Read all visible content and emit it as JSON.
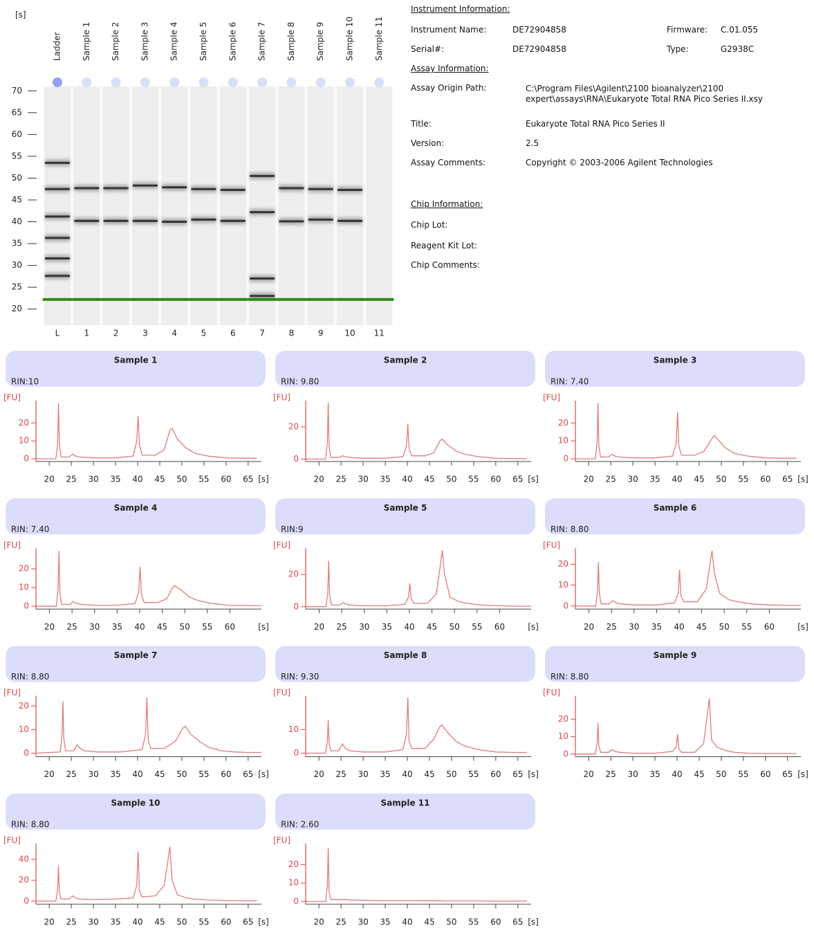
{
  "info": {
    "sections": [
      {
        "heading": "Instrument Information:",
        "rows": [
          [
            "Instrument Name:",
            "DE72904858",
            "Firmware:",
            "C.01.055"
          ],
          [
            "Serial#:",
            "DE72904858",
            "Type:",
            "G2938C"
          ]
        ]
      },
      {
        "heading": "Assay Information:",
        "rows": [
          [
            "Assay Origin Path:",
            "C:\\Program Files\\Agilent\\2100 bioanalyzer\\2100 expert\\assays\\RNA\\Eukaryote Total RNA Pico Series II.xsy"
          ],
          [
            "Title:",
            "Eukaryote Total RNA Pico Series II"
          ],
          [
            "Version:",
            "2.5"
          ],
          [
            "Assay Comments:",
            "Copyright © 2003-2006 Agilent Technologies"
          ]
        ]
      },
      {
        "heading": "Chip Information:",
        "rows": [
          [
            "Chip Lot:"
          ],
          [
            "Reagent Kit Lot:"
          ],
          [
            "Chip Comments:"
          ]
        ]
      }
    ]
  },
  "chart_data": [
    {
      "type": "gel",
      "y_label": "[s]",
      "ylim": [
        16.3,
        71
      ],
      "yticks": [
        70,
        65,
        60,
        55,
        50,
        45,
        40,
        35,
        30,
        25,
        20
      ],
      "marker": 22.2,
      "marker_color": "#2a8a14",
      "lanes": [
        {
          "name": "Ladder",
          "label": "L",
          "bands": [
            53.5,
            47.5,
            41.2,
            36.3,
            31.6,
            27.6
          ]
        },
        {
          "name": "Sample 1",
          "label": "1",
          "bands": [
            47.7,
            40.2
          ]
        },
        {
          "name": "Sample 2",
          "label": "2",
          "bands": [
            47.7,
            40.2
          ]
        },
        {
          "name": "Sample 3",
          "label": "3",
          "bands": [
            48.3,
            40.2
          ]
        },
        {
          "name": "Sample 4",
          "label": "4",
          "bands": [
            47.9,
            40.0
          ]
        },
        {
          "name": "Sample 5",
          "label": "5",
          "bands": [
            47.5,
            40.5
          ]
        },
        {
          "name": "Sample 6",
          "label": "6",
          "bands": [
            47.3,
            40.2
          ]
        },
        {
          "name": "Sample 7",
          "label": "7",
          "bands": [
            50.5,
            42.2,
            27.0,
            23.0
          ]
        },
        {
          "name": "Sample 8",
          "label": "8",
          "bands": [
            47.7,
            40.1
          ]
        },
        {
          "name": "Sample 9",
          "label": "9",
          "bands": [
            47.5,
            40.5
          ]
        },
        {
          "name": "Sample 10",
          "label": "10",
          "bands": [
            47.3,
            40.2
          ]
        },
        {
          "name": "Sample 11",
          "label": "11",
          "bands": []
        }
      ]
    },
    {
      "type": "line",
      "title": "Sample 1",
      "subtitle": "RIN:10",
      "y_label": "[FU]",
      "x_label": "[s]",
      "color": "#e07b7b",
      "axis_color": "#e04848",
      "x": [
        17,
        21.5,
        21.9,
        22.1,
        22.3,
        22.7,
        24.5,
        25.3,
        26,
        27,
        30,
        35,
        39,
        39.8,
        40.1,
        40.4,
        41,
        44,
        46,
        47.3,
        47.8,
        49,
        51,
        53,
        56,
        60,
        64,
        67
      ],
      "values": [
        0,
        0,
        8,
        31,
        8,
        1,
        1,
        2.5,
        1.5,
        1,
        0.5,
        0.5,
        1.5,
        10,
        24,
        8,
        2,
        2,
        5,
        16,
        17,
        11,
        6,
        3,
        1.5,
        0.5,
        0.3,
        0.3
      ],
      "xlim": [
        17,
        68
      ],
      "ylim": [
        -1.5,
        34
      ],
      "xticks": [
        20,
        25,
        30,
        35,
        40,
        45,
        50,
        55,
        60,
        65
      ],
      "yticks": [
        0,
        10,
        20
      ]
    },
    {
      "type": "line",
      "title": "Sample 2",
      "subtitle": "RIN: 9.80",
      "y_label": "[FU]",
      "x_label": "[s]",
      "color": "#e07b7b",
      "axis_color": "#e04848",
      "x": [
        17,
        21.5,
        21.9,
        22.1,
        22.3,
        22.7,
        24.5,
        25.3,
        26,
        27,
        30,
        35,
        39,
        39.8,
        40.1,
        40.4,
        41,
        44,
        46,
        47.3,
        47.8,
        49,
        51,
        53,
        56,
        60,
        64,
        67
      ],
      "values": [
        0,
        0,
        10,
        35,
        8,
        1,
        1,
        2,
        1.5,
        1,
        0.5,
        0.5,
        1.5,
        8,
        22,
        6,
        2,
        2,
        4,
        11,
        12.5,
        9,
        5,
        3,
        1.5,
        0.5,
        0.3,
        0.3
      ],
      "xlim": [
        17,
        68
      ],
      "ylim": [
        -1.5,
        38
      ],
      "xticks": [
        20,
        25,
        30,
        35,
        40,
        45,
        50,
        55,
        60,
        65
      ],
      "yticks": [
        0,
        20
      ]
    },
    {
      "type": "line",
      "title": "Sample 3",
      "subtitle": "RIN: 7.40",
      "y_label": "[FU]",
      "x_label": "[s]",
      "color": "#e07b7b",
      "axis_color": "#e04848",
      "x": [
        17,
        21.5,
        21.9,
        22.1,
        22.3,
        22.7,
        24.5,
        25.3,
        26,
        27,
        30,
        35,
        39,
        39.8,
        40.1,
        40.4,
        41,
        44,
        46,
        47.8,
        48.5,
        49.5,
        51,
        53,
        56,
        60,
        64,
        67
      ],
      "values": [
        0,
        0,
        9,
        31,
        7,
        1,
        1,
        2.5,
        1.5,
        1,
        0.5,
        0.5,
        1.5,
        9,
        26,
        7,
        2,
        2,
        4,
        11,
        13,
        10,
        6,
        3,
        1.5,
        0.5,
        0.3,
        0.3
      ],
      "xlim": [
        17,
        68
      ],
      "ylim": [
        -1.5,
        34
      ],
      "xticks": [
        20,
        25,
        30,
        35,
        40,
        45,
        50,
        55,
        60,
        65
      ],
      "yticks": [
        0,
        10,
        20
      ]
    },
    {
      "type": "line",
      "title": "Sample 4",
      "subtitle": "RIN: 7.40",
      "y_label": "[FU]",
      "x_label": "[s]",
      "color": "#e07b7b",
      "axis_color": "#e04848",
      "x": [
        17,
        21.5,
        21.9,
        22.1,
        22.3,
        22.7,
        24.5,
        25.3,
        26,
        27,
        30,
        35,
        39,
        39.8,
        40.1,
        40.4,
        41,
        44,
        46,
        47.3,
        47.8,
        49,
        51,
        53,
        56,
        60,
        64,
        67
      ],
      "values": [
        0,
        0,
        9,
        29.6,
        7,
        1,
        1,
        2.5,
        1.5,
        1,
        0.5,
        0.5,
        1.5,
        8,
        21,
        6,
        2,
        2,
        4,
        10,
        11,
        9,
        5,
        3,
        1.5,
        0.5,
        0.3,
        0.3
      ],
      "xlim": [
        17,
        67
      ],
      "ylim": [
        -1.5,
        32.5
      ],
      "xticks": [
        20,
        25,
        30,
        35,
        40,
        45,
        50,
        55,
        60
      ],
      "yticks": [
        0,
        10,
        20
      ]
    },
    {
      "type": "line",
      "title": "Sample 5",
      "subtitle": "RIN:9",
      "y_label": "[FU]",
      "x_label": "[s]",
      "color": "#e07b7b",
      "axis_color": "#e04848",
      "x": [
        17,
        21.5,
        21.9,
        22.1,
        22.3,
        22.7,
        24.5,
        25.3,
        26,
        27,
        30,
        35,
        39,
        39.8,
        40.1,
        40.4,
        41,
        44,
        46,
        47.3,
        47.8,
        49,
        51,
        53,
        56,
        60,
        64,
        67
      ],
      "values": [
        0,
        0,
        8,
        28.5,
        7,
        1,
        1,
        2.5,
        1.5,
        1,
        0.5,
        0.5,
        1.5,
        6,
        14.5,
        5,
        2,
        2,
        8,
        35,
        20,
        6,
        3,
        2,
        1,
        0.5,
        0.3,
        0.3
      ],
      "xlim": [
        17,
        67
      ],
      "ylim": [
        -1.5,
        38
      ],
      "xticks": [
        20,
        25,
        30,
        35,
        40,
        45,
        50,
        55,
        60
      ],
      "yticks": [
        0,
        20
      ]
    },
    {
      "type": "line",
      "title": "Sample 6",
      "subtitle": "RIN: 8.80",
      "y_label": "[FU]",
      "x_label": "[s]",
      "color": "#e07b7b",
      "axis_color": "#e04848",
      "x": [
        17,
        21.5,
        21.9,
        22.1,
        22.3,
        22.7,
        24.5,
        25.3,
        26,
        27,
        30,
        35,
        39,
        39.8,
        40.1,
        40.4,
        41,
        44,
        46,
        47.3,
        47.8,
        49,
        51,
        53,
        56,
        60,
        64,
        67
      ],
      "values": [
        0,
        0,
        7,
        21,
        6,
        1,
        1,
        2.5,
        1.5,
        1,
        0.5,
        0.5,
        1.5,
        6,
        17.4,
        5,
        2,
        2,
        8,
        26.5,
        16,
        6,
        3,
        2,
        1,
        0.5,
        0.3,
        0.3
      ],
      "xlim": [
        17,
        67
      ],
      "ylim": [
        -1.5,
        29
      ],
      "xticks": [
        20,
        25,
        30,
        35,
        40,
        45,
        50,
        55,
        60
      ],
      "yticks": [
        0,
        10,
        20
      ]
    },
    {
      "type": "line",
      "title": "Sample 7",
      "subtitle": "RIN: 8.80",
      "y_label": "[FU]",
      "x_label": "[s]",
      "color": "#e07b7b",
      "axis_color": "#e04848",
      "x": [
        17,
        22.5,
        22.9,
        23.1,
        23.3,
        23.7,
        25.5,
        26.3,
        27,
        28,
        31,
        36,
        41,
        41.8,
        42.1,
        42.4,
        43,
        46,
        48.5,
        50.2,
        50.8,
        52,
        54,
        56,
        59,
        62,
        65,
        68
      ],
      "values": [
        0,
        0.5,
        8,
        22,
        6,
        1,
        1,
        3.5,
        2,
        1,
        0.5,
        0.5,
        1.5,
        8,
        23.6,
        5,
        2,
        2,
        5,
        10.5,
        11.4,
        8,
        5,
        2.5,
        1,
        0.5,
        0.3,
        0.3
      ],
      "xlim": [
        17,
        68
      ],
      "ylim": [
        -1.5,
        25.5
      ],
      "xticks": [
        20,
        25,
        30,
        35,
        40,
        45,
        50,
        55,
        60,
        65
      ],
      "yticks": [
        0,
        10,
        20
      ]
    },
    {
      "type": "line",
      "title": "Sample 8",
      "subtitle": "RIN: 9.30",
      "y_label": "[FU]",
      "x_label": "[s]",
      "color": "#e07b7b",
      "axis_color": "#e04848",
      "x": [
        17,
        21.5,
        21.9,
        22.1,
        22.3,
        22.7,
        24.5,
        25.3,
        26,
        27,
        30,
        35,
        39,
        39.8,
        40.1,
        40.4,
        41,
        44,
        46,
        47.3,
        47.8,
        49,
        51,
        53,
        56,
        60,
        64,
        67
      ],
      "values": [
        0,
        0,
        5,
        14,
        4,
        1,
        1,
        4,
        2,
        1,
        0.5,
        0.5,
        1.5,
        8,
        23.6,
        5,
        2,
        2,
        6,
        11,
        12,
        9,
        5,
        3,
        1.5,
        0.5,
        0.3,
        0.3
      ],
      "xlim": [
        17,
        68
      ],
      "ylim": [
        -1.5,
        25.5
      ],
      "xticks": [
        20,
        25,
        30,
        35,
        40,
        45,
        50,
        55,
        60,
        65
      ],
      "yticks": [
        0,
        10
      ]
    },
    {
      "type": "line",
      "title": "Sample 9",
      "subtitle": "RIN: 8.80",
      "y_label": "[FU]",
      "x_label": "[s]",
      "color": "#e07b7b",
      "axis_color": "#e04848",
      "x": [
        17,
        21.5,
        21.9,
        22.1,
        22.3,
        22.7,
        24.5,
        25.3,
        26,
        27,
        30,
        35,
        39,
        39.8,
        40.1,
        40.4,
        41,
        44,
        46,
        47.3,
        47.8,
        49,
        51,
        53,
        56,
        60,
        64,
        67
      ],
      "values": [
        0,
        0,
        6,
        18,
        5,
        1,
        1,
        2.5,
        1.5,
        1,
        0.5,
        0.5,
        1.5,
        4,
        11.5,
        3,
        1,
        1,
        6,
        32,
        8,
        4,
        2,
        1,
        0.5,
        0.3,
        0.3,
        0.3
      ],
      "xlim": [
        17,
        68
      ],
      "ylim": [
        -1.5,
        35
      ],
      "xticks": [
        20,
        25,
        30,
        35,
        40,
        45,
        50,
        55,
        60,
        65
      ],
      "yticks": [
        0,
        10,
        20
      ]
    },
    {
      "type": "line",
      "title": "Sample 10",
      "subtitle": "RIN: 8.80",
      "y_label": "[FU]",
      "x_label": "[s]",
      "color": "#e07b7b",
      "axis_color": "#e04848",
      "x": [
        17,
        21.5,
        21.9,
        22.1,
        22.3,
        22.7,
        24.5,
        25.3,
        26,
        27,
        30,
        35,
        39,
        39.8,
        40.1,
        40.4,
        41,
        44,
        46,
        47.3,
        47.8,
        49,
        51,
        53,
        56,
        60,
        64,
        67
      ],
      "values": [
        0,
        0,
        12,
        34,
        8,
        2,
        2,
        5,
        3,
        2,
        1.5,
        2,
        3,
        15,
        47.5,
        10,
        4,
        5,
        15,
        52,
        20,
        6,
        3,
        2,
        1,
        0.5,
        0.3,
        0.3
      ],
      "xlim": [
        17,
        68
      ],
      "ylim": [
        -3,
        58
      ],
      "xticks": [
        20,
        25,
        30,
        35,
        40,
        45,
        50,
        55,
        60,
        65
      ],
      "yticks": [
        0,
        20,
        40
      ]
    },
    {
      "type": "line",
      "title": "Sample 11",
      "subtitle": "RIN: 2.60",
      "y_label": "[FU]",
      "x_label": "[s]",
      "color": "#e07b7b",
      "axis_color": "#e04848",
      "x": [
        17,
        21.5,
        21.9,
        22.1,
        22.3,
        22.7,
        24.5,
        25.3,
        26,
        27,
        30,
        35,
        39,
        39.8,
        40.1,
        40.4,
        41,
        44,
        46,
        47.3,
        47.8,
        49,
        51,
        53,
        56,
        60,
        64,
        67
      ],
      "values": [
        0,
        0,
        8,
        29,
        5,
        1,
        1,
        1,
        1,
        0.8,
        0.6,
        0.5,
        0.5,
        0.5,
        0.5,
        0.5,
        0.5,
        0.4,
        0.4,
        0.4,
        0.4,
        0.3,
        0.3,
        0.3,
        0.3,
        0.2,
        0.2,
        0.2
      ],
      "xlim": [
        17,
        68
      ],
      "ylim": [
        -1.5,
        33
      ],
      "xticks": [
        20,
        25,
        30,
        35,
        40,
        45,
        50,
        55,
        60,
        65
      ],
      "yticks": [
        0,
        10,
        20
      ]
    }
  ]
}
